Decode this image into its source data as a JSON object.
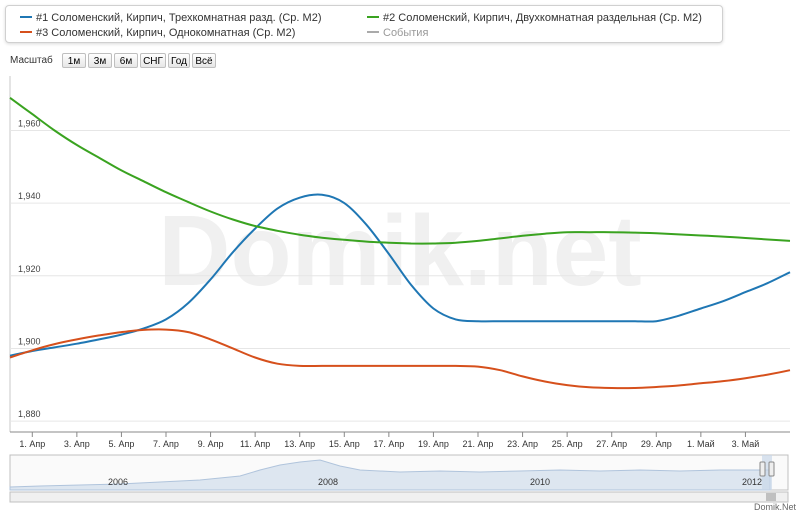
{
  "watermark": "Domik.net",
  "credit": "Domik.Net",
  "legend": [
    {
      "label": "#1 Соломенский, Кирпич, Трехкомнатная разд. (Ср. М2)",
      "color": "#1f77b4"
    },
    {
      "label": "#2 Соломенский, Кирпич, Двухкомнатная раздельная (Ср. М2)",
      "color": "#3aa320"
    },
    {
      "label": "#3 Соломенский, Кирпич, Однокомнатная (Ср. М2)",
      "color": "#d6501c"
    },
    {
      "label": "События",
      "color": "#aaaaaa"
    }
  ],
  "zoom": {
    "label": "Масштаб",
    "buttons": [
      "1м",
      "3м",
      "6м",
      "СНГ",
      "Год",
      "Всё"
    ]
  },
  "navigator": {
    "years": [
      "2006",
      "2008",
      "2010",
      "2012"
    ]
  },
  "chart_data": {
    "type": "line",
    "x_labels": [
      "1. Апр",
      "3. Апр",
      "5. Апр",
      "7. Апр",
      "9. Апр",
      "11. Апр",
      "13. Апр",
      "15. Апр",
      "17. Апр",
      "19. Апр",
      "21. Апр",
      "23. Апр",
      "25. Апр",
      "27. Апр",
      "29. Апр",
      "1. Май",
      "3. Май"
    ],
    "x": [
      "31. Мар",
      "1. Апр",
      "2. Апр",
      "3. Апр",
      "4. Апр",
      "5. Апр",
      "6. Апр",
      "7. Апр",
      "8. Апр",
      "9. Апр",
      "10. Апр",
      "11. Апр",
      "12. Апр",
      "13. Апр",
      "14. Апр",
      "15. Апр",
      "16. Апр",
      "17. Апр",
      "18. Апр",
      "19. Апр",
      "20. Апр",
      "21. Апр",
      "22. Апр",
      "23. Апр",
      "24. Апр",
      "25. Апр",
      "26. Апр",
      "27. Апр",
      "28. Апр",
      "29. Апр",
      "30. Апр",
      "1. Май",
      "2. Май",
      "3. Май",
      "4. Май",
      "5. Май"
    ],
    "series": [
      {
        "name": "#1 Соломенский, Кирпич, Трехкомнатная разд. (Ср. М2)",
        "color": "#1f77b4",
        "values": [
          1898,
          1899.3,
          1900.3,
          1901.3,
          1902.5,
          1903.8,
          1905.5,
          1908,
          1912.5,
          1919,
          1926.5,
          1933,
          1938.5,
          1941.5,
          1942.3,
          1940,
          1934,
          1926,
          1917.5,
          1911,
          1908,
          1907.5,
          1907.5,
          1907.5,
          1907.5,
          1907.5,
          1907.5,
          1907.5,
          1907.5,
          1907.5,
          1909,
          1911,
          1913,
          1915.5,
          1918,
          1921
        ]
      },
      {
        "name": "#2 Соломенский, Кирпич, Двухкомнатная раздельная (Ср. М2)",
        "color": "#3aa320",
        "values": [
          1969,
          1964.5,
          1960,
          1956,
          1952.5,
          1949,
          1946,
          1943,
          1940.3,
          1937.7,
          1935.5,
          1933.7,
          1932.4,
          1931.3,
          1930.5,
          1929.9,
          1929.4,
          1929.1,
          1928.9,
          1928.9,
          1929.1,
          1929.6,
          1930.3,
          1931,
          1931.6,
          1932,
          1932,
          1932,
          1931.9,
          1931.7,
          1931.4,
          1931.1,
          1930.8,
          1930.4,
          1930,
          1929.6
        ]
      },
      {
        "name": "#3 Соломенский, Кирпич, Однокомнатная (Ср. М2)",
        "color": "#d6501c",
        "values": [
          1897.5,
          1899.5,
          1901.2,
          1902.5,
          1903.6,
          1904.5,
          1905.1,
          1905.2,
          1904.5,
          1902.5,
          1900,
          1897.5,
          1895.8,
          1895.2,
          1895.2,
          1895.2,
          1895.2,
          1895.2,
          1895.2,
          1895.2,
          1895.2,
          1895,
          1894,
          1892.3,
          1890.9,
          1889.9,
          1889.3,
          1889.1,
          1889.1,
          1889.4,
          1889.8,
          1890.4,
          1891,
          1891.8,
          1892.8,
          1894
        ]
      }
    ],
    "yticks": [
      1880,
      1900,
      1920,
      1940,
      1960
    ],
    "ytick_labels": [
      "1,880",
      "1,900",
      "1,920",
      "1,940",
      "1,960"
    ],
    "ylim": [
      1877,
      1975
    ],
    "grid": true,
    "legend_position": "top"
  }
}
